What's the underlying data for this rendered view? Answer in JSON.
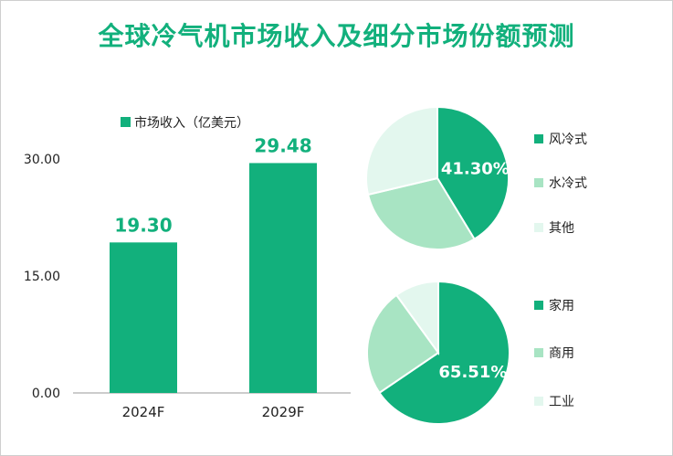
{
  "title": "全球冷气机市场收入及细分市场份额预测",
  "colors": {
    "primary": "#12b07c",
    "medium": "#a8e4c3",
    "light": "#e3f7ee",
    "axis": "#9a9a9a"
  },
  "chart_data": [
    {
      "type": "bar",
      "title": "全球冷气机市场收入及细分市场份额预测",
      "legend": "市场收入（亿美元）",
      "categories": [
        "2024F",
        "2029F"
      ],
      "values": [
        19.3,
        29.48
      ],
      "value_labels": [
        "19.30",
        "29.48"
      ],
      "yticks": [
        "0.00",
        "15.00",
        "30.00"
      ],
      "ylim": [
        0,
        30
      ]
    },
    {
      "type": "pie",
      "labels": [
        "风冷式",
        "水冷式",
        "其他"
      ],
      "shares": [
        41.3,
        30.0,
        28.7
      ],
      "shown_label": "41.30%"
    },
    {
      "type": "pie",
      "labels": [
        "家用",
        "商用",
        "工业"
      ],
      "shares": [
        65.51,
        24.5,
        9.99
      ],
      "shown_label": "65.51%"
    }
  ]
}
